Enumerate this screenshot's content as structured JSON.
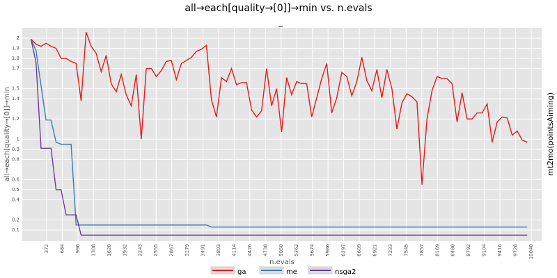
{
  "chart_data": {
    "type": "line",
    "title": "all→each[quality→[0]]→min vs. n.evals",
    "subtitle": "_",
    "x_label": "n.evals",
    "y_label": "all→each[quality→[0]]→min",
    "right_label": "mt2mo(pointsAiming)",
    "grid": true,
    "legend": "bottom",
    "xlim": [
      -114,
      10248
    ],
    "ylim": [
      -0.01,
      2.103
    ],
    "xticks": [
      372,
      684,
      996,
      1308,
      1620,
      1932,
      2243,
      2555,
      2867,
      3179,
      3491,
      3803,
      4114,
      4426,
      4738,
      5050,
      5362,
      5674,
      5986,
      6297,
      6609,
      6921,
      7233,
      7545,
      7857,
      8169,
      8480,
      8792,
      9104,
      9416,
      9728,
      10040
    ],
    "yticks": [
      0.1,
      0.2,
      0.4,
      0.5,
      0.6,
      0.8,
      0.9,
      1.0,
      1.2,
      1.4,
      1.5,
      1.7,
      1.8,
      1.9,
      2.0
    ],
    "x": [
      60,
      160,
      260,
      360,
      460,
      560,
      660,
      760,
      860,
      960,
      1060,
      1160,
      1260,
      1360,
      1460,
      1560,
      1660,
      1760,
      1860,
      1960,
      2060,
      2160,
      2260,
      2360,
      2460,
      2560,
      2660,
      2760,
      2860,
      2960,
      3060,
      3160,
      3260,
      3360,
      3460,
      3560,
      3660,
      3760,
      3860,
      3960,
      4060,
      4160,
      4260,
      4360,
      4460,
      4560,
      4660,
      4760,
      4860,
      4960,
      5060,
      5160,
      5260,
      5360,
      5460,
      5560,
      5660,
      5760,
      5860,
      5960,
      6060,
      6160,
      6260,
      6360,
      6460,
      6560,
      6660,
      6760,
      6860,
      6960,
      7060,
      7160,
      7260,
      7360,
      7460,
      7560,
      7660,
      7760,
      7860,
      7960,
      8060,
      8160,
      8260,
      8360,
      8460,
      8560,
      8660,
      8760,
      8860,
      8960,
      9060,
      9160,
      9260,
      9360,
      9460,
      9560,
      9660,
      9760,
      9860,
      9960
    ],
    "series": [
      {
        "name": "ga",
        "color": "#e41a1c",
        "values": [
          1.99,
          1.94,
          1.92,
          1.95,
          1.92,
          1.9,
          1.8,
          1.8,
          1.77,
          1.75,
          1.38,
          2.06,
          1.92,
          1.85,
          1.67,
          1.83,
          1.55,
          1.47,
          1.64,
          1.44,
          1.33,
          1.64,
          1.0,
          1.7,
          1.7,
          1.62,
          1.68,
          1.77,
          1.78,
          1.59,
          1.75,
          1.78,
          1.81,
          1.87,
          1.89,
          1.93,
          1.39,
          1.22,
          1.61,
          1.57,
          1.7,
          1.54,
          1.56,
          1.56,
          1.29,
          1.22,
          1.28,
          1.7,
          1.33,
          1.5,
          1.07,
          1.61,
          1.44,
          1.57,
          1.55,
          1.55,
          1.22,
          1.41,
          1.6,
          1.75,
          1.26,
          1.41,
          1.66,
          1.62,
          1.43,
          1.57,
          1.81,
          1.58,
          1.48,
          1.69,
          1.41,
          1.69,
          1.5,
          1.1,
          1.36,
          1.45,
          1.42,
          1.37,
          0.55,
          1.2,
          1.48,
          1.62,
          1.6,
          1.6,
          1.55,
          1.17,
          1.46,
          1.2,
          1.2,
          1.26,
          1.26,
          1.35,
          0.97,
          1.17,
          1.22,
          1.21,
          1.04,
          1.08,
          0.99,
          0.97
        ]
      },
      {
        "name": "me",
        "color": "#377eb8",
        "values": [
          1.99,
          1.88,
          1.53,
          1.19,
          1.19,
          0.97,
          0.95,
          0.95,
          0.95,
          0.15,
          0.15,
          0.15,
          0.15,
          0.15,
          0.15,
          0.15,
          0.15,
          0.15,
          0.15,
          0.15,
          0.15,
          0.15,
          0.15,
          0.15,
          0.15,
          0.15,
          0.15,
          0.15,
          0.15,
          0.15,
          0.15,
          0.15,
          0.15,
          0.15,
          0.15,
          0.15,
          0.13,
          0.13,
          0.13,
          0.13,
          0.13,
          0.13,
          0.13,
          0.13,
          0.13,
          0.13,
          0.13,
          0.13,
          0.13,
          0.13,
          0.13,
          0.13,
          0.13,
          0.13,
          0.13,
          0.13,
          0.13,
          0.13,
          0.13,
          0.13,
          0.13,
          0.13,
          0.13,
          0.13,
          0.13,
          0.13,
          0.13,
          0.13,
          0.13,
          0.13,
          0.13,
          0.13,
          0.13,
          0.13,
          0.13,
          0.13,
          0.13,
          0.13,
          0.13,
          0.13,
          0.13,
          0.13,
          0.13,
          0.13,
          0.13,
          0.13,
          0.13,
          0.13,
          0.13,
          0.13,
          0.13,
          0.13,
          0.13,
          0.13,
          0.13,
          0.13,
          0.13,
          0.13,
          0.13,
          0.13
        ]
      },
      {
        "name": "nsga2",
        "color": "#6a3d9a",
        "values": [
          1.99,
          1.76,
          0.91,
          0.91,
          0.91,
          0.5,
          0.5,
          0.25,
          0.25,
          0.25,
          0.05,
          0.05,
          0.05,
          0.05,
          0.05,
          0.05,
          0.05,
          0.05,
          0.05,
          0.05,
          0.05,
          0.05,
          0.05,
          0.05,
          0.05,
          0.05,
          0.05,
          0.05,
          0.05,
          0.05,
          0.05,
          0.05,
          0.05,
          0.05,
          0.05,
          0.05,
          0.05,
          0.05,
          0.05,
          0.05,
          0.05,
          0.05,
          0.05,
          0.05,
          0.05,
          0.05,
          0.05,
          0.05,
          0.05,
          0.05,
          0.05,
          0.05,
          0.05,
          0.05,
          0.05,
          0.05,
          0.05,
          0.05,
          0.05,
          0.05,
          0.05,
          0.05,
          0.05,
          0.05,
          0.05,
          0.05,
          0.05,
          0.05,
          0.05,
          0.05,
          0.05,
          0.05,
          0.05,
          0.05,
          0.05,
          0.05,
          0.05,
          0.05,
          0.05,
          0.05,
          0.05,
          0.05,
          0.05,
          0.05,
          0.05,
          0.05,
          0.05,
          0.05,
          0.05,
          0.05,
          0.05,
          0.05,
          0.05,
          0.05,
          0.05,
          0.05,
          0.05,
          0.05,
          0.05,
          0.05
        ]
      }
    ]
  }
}
